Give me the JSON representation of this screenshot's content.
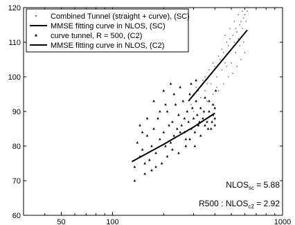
{
  "chart_data": {
    "type": "scatter",
    "x_scale": "log",
    "xlim": [
      30,
      1000
    ],
    "ylim": [
      60,
      120
    ],
    "x_ticks": [
      50,
      100,
      1000
    ],
    "x_tick_labels": [
      "50",
      "100",
      "1000"
    ],
    "y_ticks": [
      60,
      70,
      80,
      90,
      100,
      110,
      120
    ],
    "y_tick_labels": [
      "60",
      "70",
      "80",
      "90",
      "100",
      "110",
      "120"
    ],
    "grid": false,
    "legend_position": "top-left",
    "series": [
      {
        "name": "Combined Tunnel (straight + curve), (SC)",
        "kind": "scatter",
        "marker": "dot",
        "color": "#444444",
        "points": [
          [
            290,
            92
          ],
          [
            300,
            95
          ],
          [
            310,
            97
          ],
          [
            320,
            96
          ],
          [
            330,
            94
          ],
          [
            340,
            99
          ],
          [
            350,
            100
          ],
          [
            360,
            98
          ],
          [
            370,
            102
          ],
          [
            380,
            101
          ],
          [
            390,
            104
          ],
          [
            400,
            103
          ],
          [
            410,
            100
          ],
          [
            420,
            106
          ],
          [
            430,
            105
          ],
          [
            440,
            108
          ],
          [
            450,
            107
          ],
          [
            460,
            104
          ],
          [
            470,
            110
          ],
          [
            480,
            109
          ],
          [
            490,
            111
          ],
          [
            500,
            108
          ],
          [
            510,
            112
          ],
          [
            520,
            110
          ],
          [
            530,
            114
          ],
          [
            540,
            113
          ],
          [
            550,
            111
          ],
          [
            560,
            115
          ],
          [
            570,
            116
          ],
          [
            580,
            114
          ],
          [
            590,
            117
          ],
          [
            600,
            118
          ],
          [
            610,
            116
          ],
          [
            620,
            119
          ],
          [
            350,
            96
          ],
          [
            380,
            98
          ],
          [
            410,
            97
          ],
          [
            440,
            102
          ],
          [
            470,
            103
          ],
          [
            500,
            104
          ],
          [
            530,
            107
          ],
          [
            560,
            109
          ],
          [
            590,
            110
          ],
          [
            300,
            90
          ],
          [
            330,
            91
          ],
          [
            360,
            93
          ],
          [
            390,
            95
          ],
          [
            420,
            96
          ],
          [
            450,
            98
          ],
          [
            480,
            100
          ],
          [
            510,
            101
          ],
          [
            540,
            103
          ],
          [
            570,
            105
          ],
          [
            600,
            107
          ],
          [
            460,
            112
          ],
          [
            490,
            114
          ],
          [
            520,
            116
          ],
          [
            550,
            118
          ],
          [
            580,
            119
          ]
        ]
      },
      {
        "name": "MMSE fitting curve in NLOS, (SC)",
        "kind": "line",
        "color": "#000000",
        "points": [
          [
            280,
            93
          ],
          [
            620,
            113.5
          ]
        ]
      },
      {
        "name": "curve tunnel, R = 500, (C2)",
        "kind": "scatter",
        "marker": "triangle",
        "color": "#000000",
        "points": [
          [
            135,
            74
          ],
          [
            140,
            81
          ],
          [
            145,
            77
          ],
          [
            150,
            79
          ],
          [
            155,
            72
          ],
          [
            160,
            83
          ],
          [
            165,
            76
          ],
          [
            170,
            80
          ],
          [
            175,
            85
          ],
          [
            180,
            78
          ],
          [
            185,
            88
          ],
          [
            190,
            82
          ],
          [
            195,
            75
          ],
          [
            200,
            84
          ],
          [
            205,
            80
          ],
          [
            210,
            90
          ],
          [
            215,
            86
          ],
          [
            220,
            81
          ],
          [
            225,
            87
          ],
          [
            230,
            83
          ],
          [
            235,
            92
          ],
          [
            240,
            85
          ],
          [
            245,
            89
          ],
          [
            250,
            84
          ],
          [
            255,
            86
          ],
          [
            260,
            93
          ],
          [
            265,
            88
          ],
          [
            270,
            82
          ],
          [
            275,
            90
          ],
          [
            280,
            87
          ],
          [
            285,
            95
          ],
          [
            290,
            85
          ],
          [
            295,
            91
          ],
          [
            300,
            88
          ],
          [
            305,
            84
          ],
          [
            310,
            93
          ],
          [
            315,
            89
          ],
          [
            320,
            86
          ],
          [
            330,
            91
          ],
          [
            340,
            88
          ],
          [
            350,
            94
          ],
          [
            360,
            87
          ],
          [
            370,
            90
          ],
          [
            380,
            85
          ],
          [
            390,
            92
          ],
          [
            400,
            88
          ],
          [
            405,
            96
          ],
          [
            150,
            84
          ],
          [
            170,
            73
          ],
          [
            190,
            90
          ],
          [
            210,
            77
          ],
          [
            230,
            95
          ],
          [
            250,
            97
          ],
          [
            270,
            80
          ],
          [
            290,
            98
          ],
          [
            310,
            99
          ],
          [
            330,
            83
          ],
          [
            350,
            86
          ],
          [
            370,
            93
          ],
          [
            390,
            89
          ],
          [
            400,
            91
          ],
          [
            145,
            86
          ],
          [
            160,
            88
          ],
          [
            175,
            93
          ],
          [
            200,
            96
          ],
          [
            220,
            98
          ],
          [
            245,
            78
          ],
          [
            265,
            84
          ],
          [
            285,
            82
          ],
          [
            305,
            80
          ],
          [
            325,
            87
          ],
          [
            345,
            90
          ],
          [
            365,
            85
          ],
          [
            385,
            87
          ],
          [
            400,
            86
          ],
          [
            135,
            70
          ],
          [
            155,
            75
          ],
          [
            180,
            74
          ],
          [
            205,
            92
          ],
          [
            225,
            79
          ]
        ]
      },
      {
        "name": "MMSE fitting curve in NLOS, (C2)",
        "kind": "line",
        "color": "#000000",
        "points": [
          [
            130,
            75.5
          ],
          [
            200,
            80.5
          ],
          [
            300,
            85.5
          ],
          [
            400,
            89.5
          ]
        ]
      }
    ],
    "annotations": [
      {
        "main": "NLOS",
        "sub": "sc",
        "value": " = 5.88"
      },
      {
        "main": "R500 : NLOS",
        "sub": "c2",
        "value": " = 2.92"
      }
    ]
  }
}
